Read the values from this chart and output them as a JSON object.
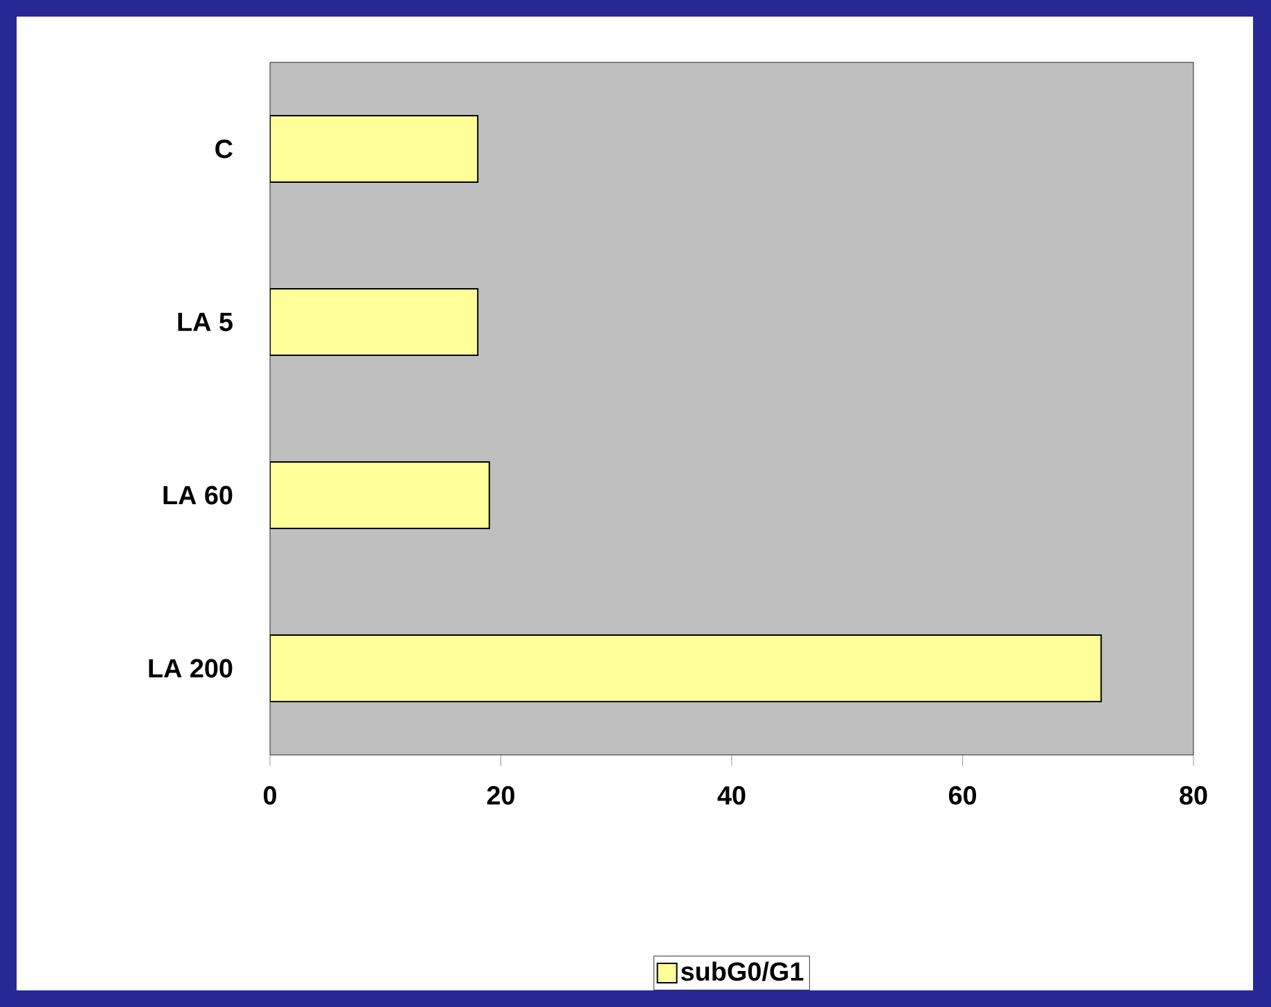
{
  "chart_data": {
    "type": "bar",
    "orientation": "horizontal",
    "categories": [
      "C",
      "LA 5",
      "LA 60",
      "LA 200"
    ],
    "series": [
      {
        "name": "subG0/G1",
        "color": "#ffff99",
        "values": [
          18,
          18,
          19,
          72
        ]
      }
    ],
    "xlim": [
      0,
      80
    ],
    "xticks": [
      0,
      20,
      40,
      60,
      80
    ],
    "grid": false,
    "legend": "bottom"
  }
}
